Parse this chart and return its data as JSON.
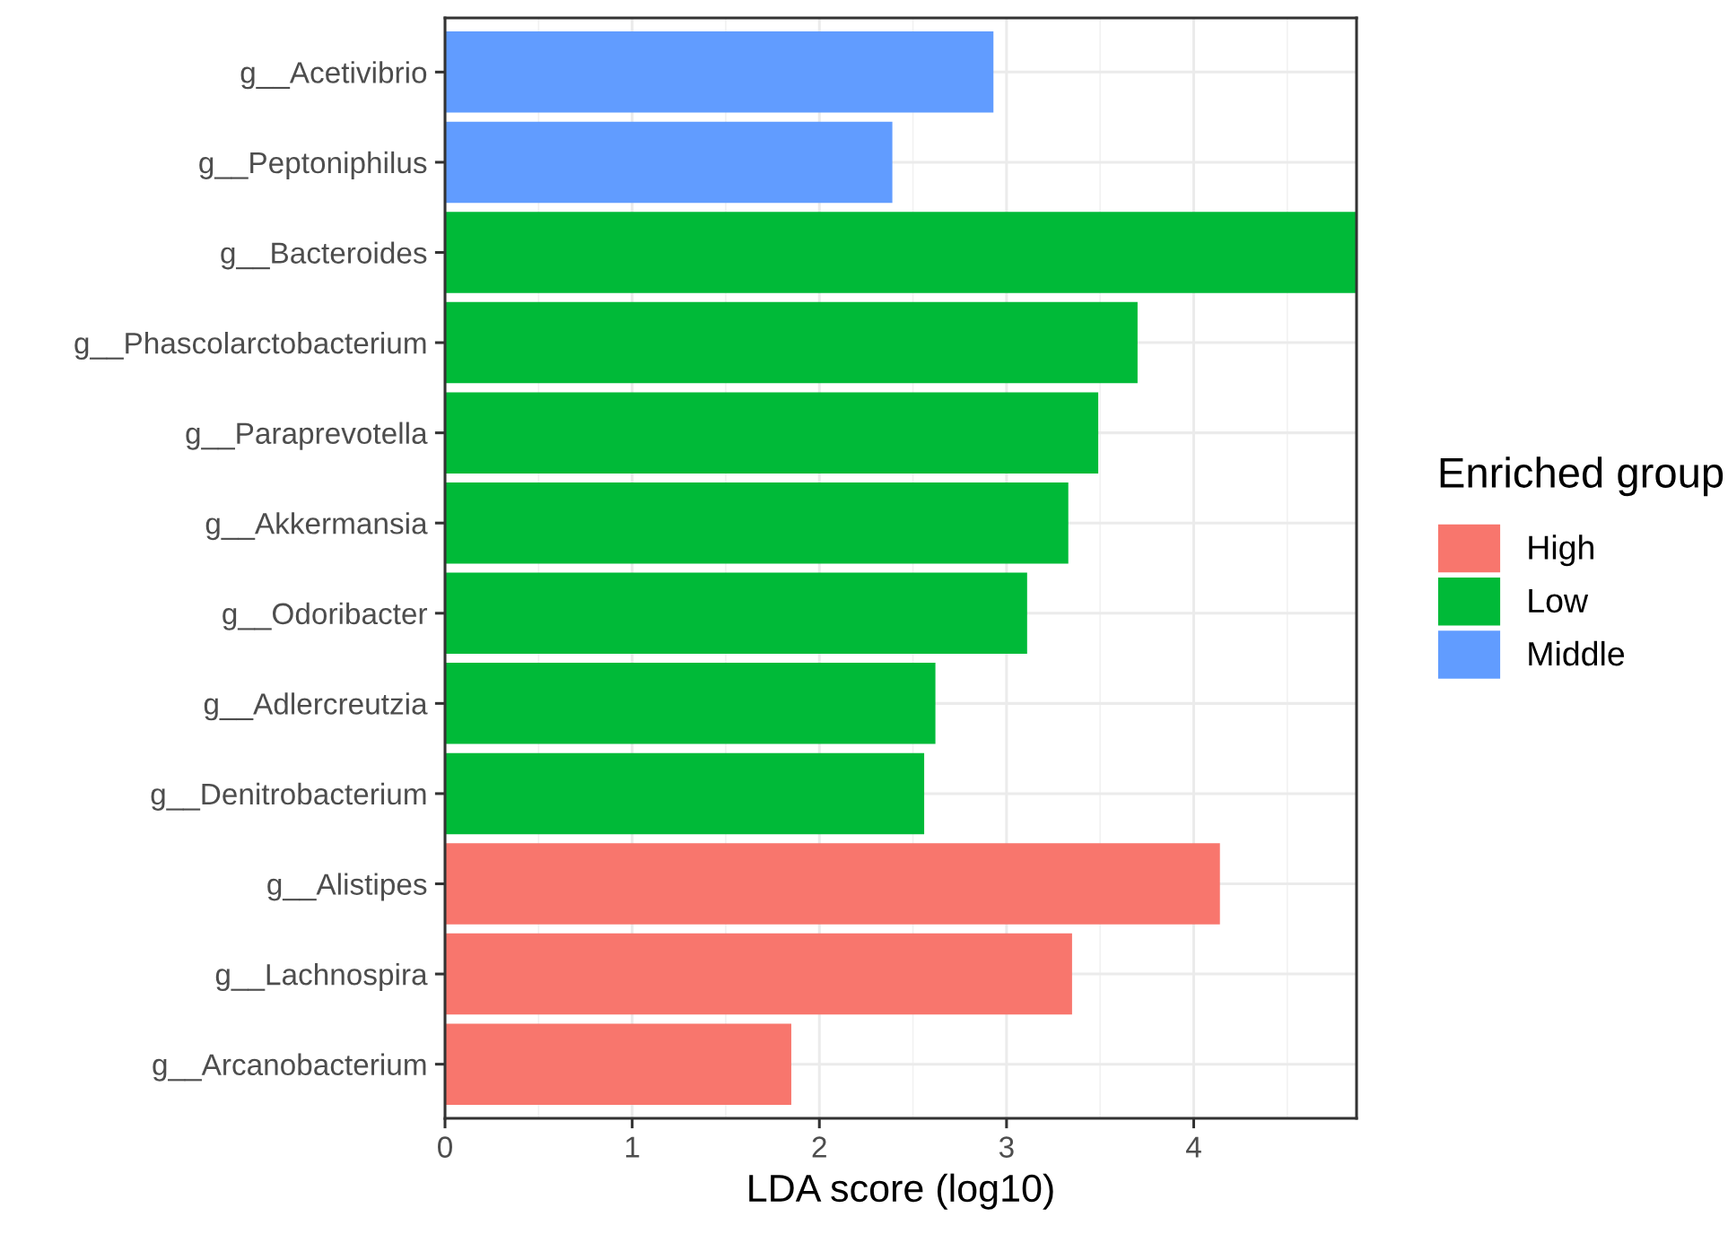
{
  "chart_data": {
    "type": "bar",
    "orientation": "horizontal",
    "categories": [
      "g__Acetivibrio",
      "g__Peptoniphilus",
      "g__Bacteroides",
      "g__Phascolarctobacterium",
      "g__Paraprevotella",
      "g__Akkermansia",
      "g__Odoribacter",
      "g__Adlercreutzia",
      "g__Denitrobacterium",
      "g__Alistipes",
      "g__Lachnospira",
      "g__Arcanobacterium"
    ],
    "series": [
      {
        "name": "High",
        "color": "#f8766d",
        "values": [
          null,
          null,
          null,
          null,
          null,
          null,
          null,
          null,
          null,
          4.14,
          3.35,
          1.85
        ]
      },
      {
        "name": "Low",
        "color": "#00ba38",
        "values": [
          null,
          null,
          4.87,
          3.7,
          3.49,
          3.33,
          3.11,
          2.62,
          2.56,
          null,
          null,
          null
        ]
      },
      {
        "name": "Middle",
        "color": "#619cff",
        "values": [
          2.93,
          2.39,
          null,
          null,
          null,
          null,
          null,
          null,
          null,
          null,
          null,
          null
        ]
      }
    ],
    "xlabel": "LDA score (log10)",
    "legend_title": "Enriched group",
    "xlim": [
      0,
      4.87
    ],
    "xticks": [
      0,
      1,
      2,
      3,
      4
    ],
    "grid": true,
    "legend": "right"
  }
}
